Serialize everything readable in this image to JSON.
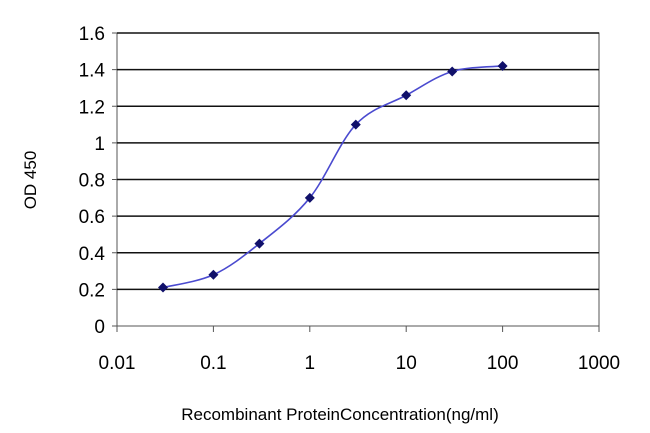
{
  "chart_data": {
    "type": "line",
    "title": "",
    "xlabel": "Recombinant ProteinConcentration(ng/ml)",
    "ylabel": "OD 450",
    "x_scale": "log",
    "xlim": [
      0.01,
      1000
    ],
    "ylim": [
      0,
      1.6
    ],
    "grid": "horizontal",
    "legend": "none",
    "x_ticks": [
      "0.01",
      "0.1",
      "1",
      "10",
      "100",
      "1000"
    ],
    "y_ticks": [
      "0",
      "0.2",
      "0.4",
      "0.6",
      "0.8",
      "1",
      "1.2",
      "1.4",
      "1.6"
    ],
    "series": [
      {
        "x": [
          0.03,
          0.1,
          0.3,
          1,
          3,
          10,
          30,
          100
        ],
        "y": [
          0.21,
          0.28,
          0.45,
          0.7,
          1.1,
          1.26,
          1.39,
          1.42
        ],
        "color": "#4a4acf",
        "marker_color": "#10106a"
      }
    ],
    "colors": {
      "background": "#ffffff",
      "plot_background": "#ffffff",
      "gridline": "#111111",
      "axis": "#555555"
    }
  }
}
